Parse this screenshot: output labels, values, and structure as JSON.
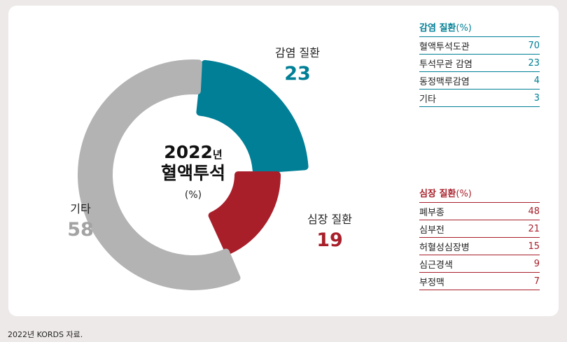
{
  "chart_data": {
    "type": "pie",
    "categories": [
      "감염 질환",
      "심장 질환",
      "기타"
    ],
    "values": [
      23,
      19,
      58
    ],
    "colors": [
      "#007f96",
      "#a81f2a",
      "#b3b3b3"
    ],
    "center": {
      "year": "2022",
      "year_suffix": "년",
      "title": "혈액투석",
      "unit": "(%)"
    }
  },
  "tables": {
    "infection": {
      "title": "감염 질환",
      "unit": "(%)",
      "color": "#007f96",
      "rows": [
        {
          "name": "혈액투석도관",
          "value": "70"
        },
        {
          "name": "투석무관 감염",
          "value": "23"
        },
        {
          "name": "동정맥루감염",
          "value": "4"
        },
        {
          "name": "기타",
          "value": "3"
        }
      ]
    },
    "heart": {
      "title": "심장 질환",
      "unit": "(%)",
      "color": "#a81f2a",
      "rows": [
        {
          "name": "폐부종",
          "value": "48"
        },
        {
          "name": "심부전",
          "value": "21"
        },
        {
          "name": "허혈성심장병",
          "value": "15"
        },
        {
          "name": "심근경색",
          "value": "9"
        },
        {
          "name": "부정맥",
          "value": "7"
        }
      ]
    }
  },
  "footer": {
    "source": "2022년 KORDS 자료."
  }
}
